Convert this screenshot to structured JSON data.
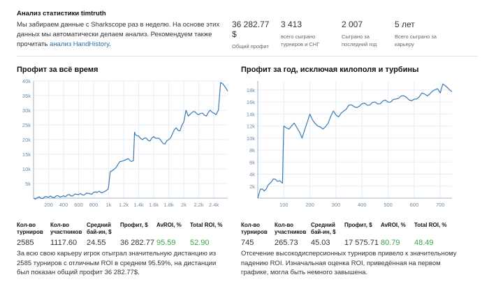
{
  "intro": {
    "title": "Анализ статистики timtruth",
    "text": "Мы забираем данные с Sharkscope раз в неделю. На основе этих данных мы автоматически делаем анализ. Рекомендуем также прочитать ",
    "link": "анализ HandHistory",
    "after": "."
  },
  "stats": [
    {
      "value": "36 282.77 $",
      "label": "Общий профит"
    },
    {
      "value": "3 413",
      "label": "всего сыграно турниров и СНГ"
    },
    {
      "value": "2 007",
      "label": "Сыграно за последний год"
    },
    {
      "value": "5 лет",
      "label": "Всего сыграно за карьеру"
    }
  ],
  "colors": {
    "line": "#3b79b5",
    "grid": "#e6eef5",
    "axis": "#9db4c8",
    "green": "#3fa34d",
    "link": "#2a6fb0"
  },
  "left": {
    "title": "Профит за всё время",
    "table": {
      "h1": "Кол-во турниров",
      "v1": "2585",
      "h2": "Кол-во участников",
      "v2": "1117.60",
      "h3": "Средний бай-ин, $",
      "v3": "24.55",
      "h4": "Профит, $",
      "v4": "36 282.77",
      "h5": "AvROI, %",
      "v5": "95.59",
      "h6": "Total ROI, %",
      "v6": "52.90"
    },
    "summary": "За всю свою карьеру игрок отыграл значительную дистанцию из 2585 турниров с отличным ROI в среднем 95.59%, на дистанции был показан общий профит 36 282.77$."
  },
  "right": {
    "title": "Профит за год, исключая килополя и турбины",
    "table": {
      "h1": "Кол-во турниров",
      "v1": "745",
      "h2": "Кол-во участников",
      "v2": "265.73",
      "h3": "Средний бай-ин, $",
      "v3": "45.03",
      "h4": "Профит, $",
      "v4": "17 575.71",
      "h5": "AvROI, %",
      "v5": "80.79",
      "h6": "Total ROI, %",
      "v6": "48.49"
    },
    "summary": "Отсечение высокодисперсионных турниров привело к значительному падению ROI. Изначальная оценка ROI, приведённая на первом графике, могла быть немного завышена."
  },
  "chart_data": [
    {
      "type": "line",
      "title": "Профит за всё время",
      "xlim": [
        0,
        2585
      ],
      "ylim": [
        0,
        40000
      ],
      "x_ticks": [
        200,
        400,
        600,
        800,
        1000,
        1200,
        1400,
        1600,
        1800,
        2000,
        2200,
        2400
      ],
      "x_tick_labels": [
        "200",
        "400",
        "600",
        "800",
        "1k",
        "1.2k",
        "1.4k",
        "1.6k",
        "1.8k",
        "2k",
        "2.2k",
        "2.4k"
      ],
      "y_ticks": [
        5000,
        10000,
        15000,
        20000,
        25000,
        30000,
        35000,
        40000
      ],
      "y_tick_labels": [
        "5k",
        "10k",
        "15k",
        "20k",
        "25k",
        "30k",
        "35k",
        "40k"
      ],
      "x": [
        0,
        200,
        400,
        600,
        750,
        850,
        950,
        990,
        1000,
        1020,
        1060,
        1100,
        1150,
        1200,
        1260,
        1300,
        1330,
        1345,
        1360,
        1400,
        1450,
        1500,
        1550,
        1600,
        1650,
        1700,
        1750,
        1800,
        1850,
        1900,
        1950,
        2000,
        2030,
        2060,
        2100,
        2150,
        2200,
        2250,
        2300,
        2350,
        2400,
        2430,
        2460,
        2490,
        2520,
        2550,
        2585
      ],
      "y": [
        0,
        300,
        800,
        1200,
        1500,
        2000,
        2300,
        3000,
        4000,
        9000,
        9600,
        10500,
        12500,
        12800,
        13500,
        12500,
        12800,
        22500,
        21500,
        21200,
        20000,
        20500,
        19500,
        21000,
        20500,
        19500,
        18500,
        20000,
        22000,
        24000,
        23000,
        26000,
        30000,
        28000,
        29000,
        29500,
        28500,
        29000,
        28000,
        30000,
        29000,
        28500,
        30000,
        39500,
        39000,
        38000,
        36500
      ]
    },
    {
      "type": "line",
      "title": "Профит за год, исключая килополя и турбины",
      "xlim": [
        0,
        745
      ],
      "ylim": [
        0,
        19500
      ],
      "x_ticks": [
        100,
        200,
        300,
        400,
        500,
        600,
        700
      ],
      "x_tick_labels": [
        "100",
        "200",
        "300",
        "400",
        "500",
        "600",
        "700"
      ],
      "y_ticks": [
        2000,
        4000,
        6000,
        8000,
        10000,
        12000,
        14000,
        16000,
        18000
      ],
      "y_tick_labels": [
        "2k",
        "4k",
        "6k",
        "8k",
        "10k",
        "12k",
        "14k",
        "16k",
        "18k"
      ],
      "x": [
        0,
        10,
        25,
        40,
        50,
        60,
        75,
        85,
        95,
        98,
        100,
        120,
        140,
        160,
        170,
        185,
        200,
        210,
        230,
        250,
        270,
        290,
        310,
        330,
        350,
        370,
        390,
        410,
        430,
        450,
        470,
        490,
        510,
        530,
        550,
        570,
        590,
        610,
        630,
        650,
        670,
        690,
        700,
        710,
        725,
        745
      ],
      "y": [
        0,
        1500,
        1200,
        2200,
        2600,
        3200,
        2800,
        2900,
        2500,
        9000,
        12000,
        11500,
        12500,
        11000,
        10000,
        12000,
        14000,
        13000,
        12000,
        11500,
        12500,
        14500,
        13500,
        14500,
        15500,
        15200,
        15300,
        15800,
        15500,
        16000,
        15700,
        16300,
        16000,
        16500,
        17000,
        16800,
        16200,
        16500,
        17500,
        17000,
        17800,
        18200,
        17500,
        19000,
        18500,
        17700
      ]
    }
  ]
}
